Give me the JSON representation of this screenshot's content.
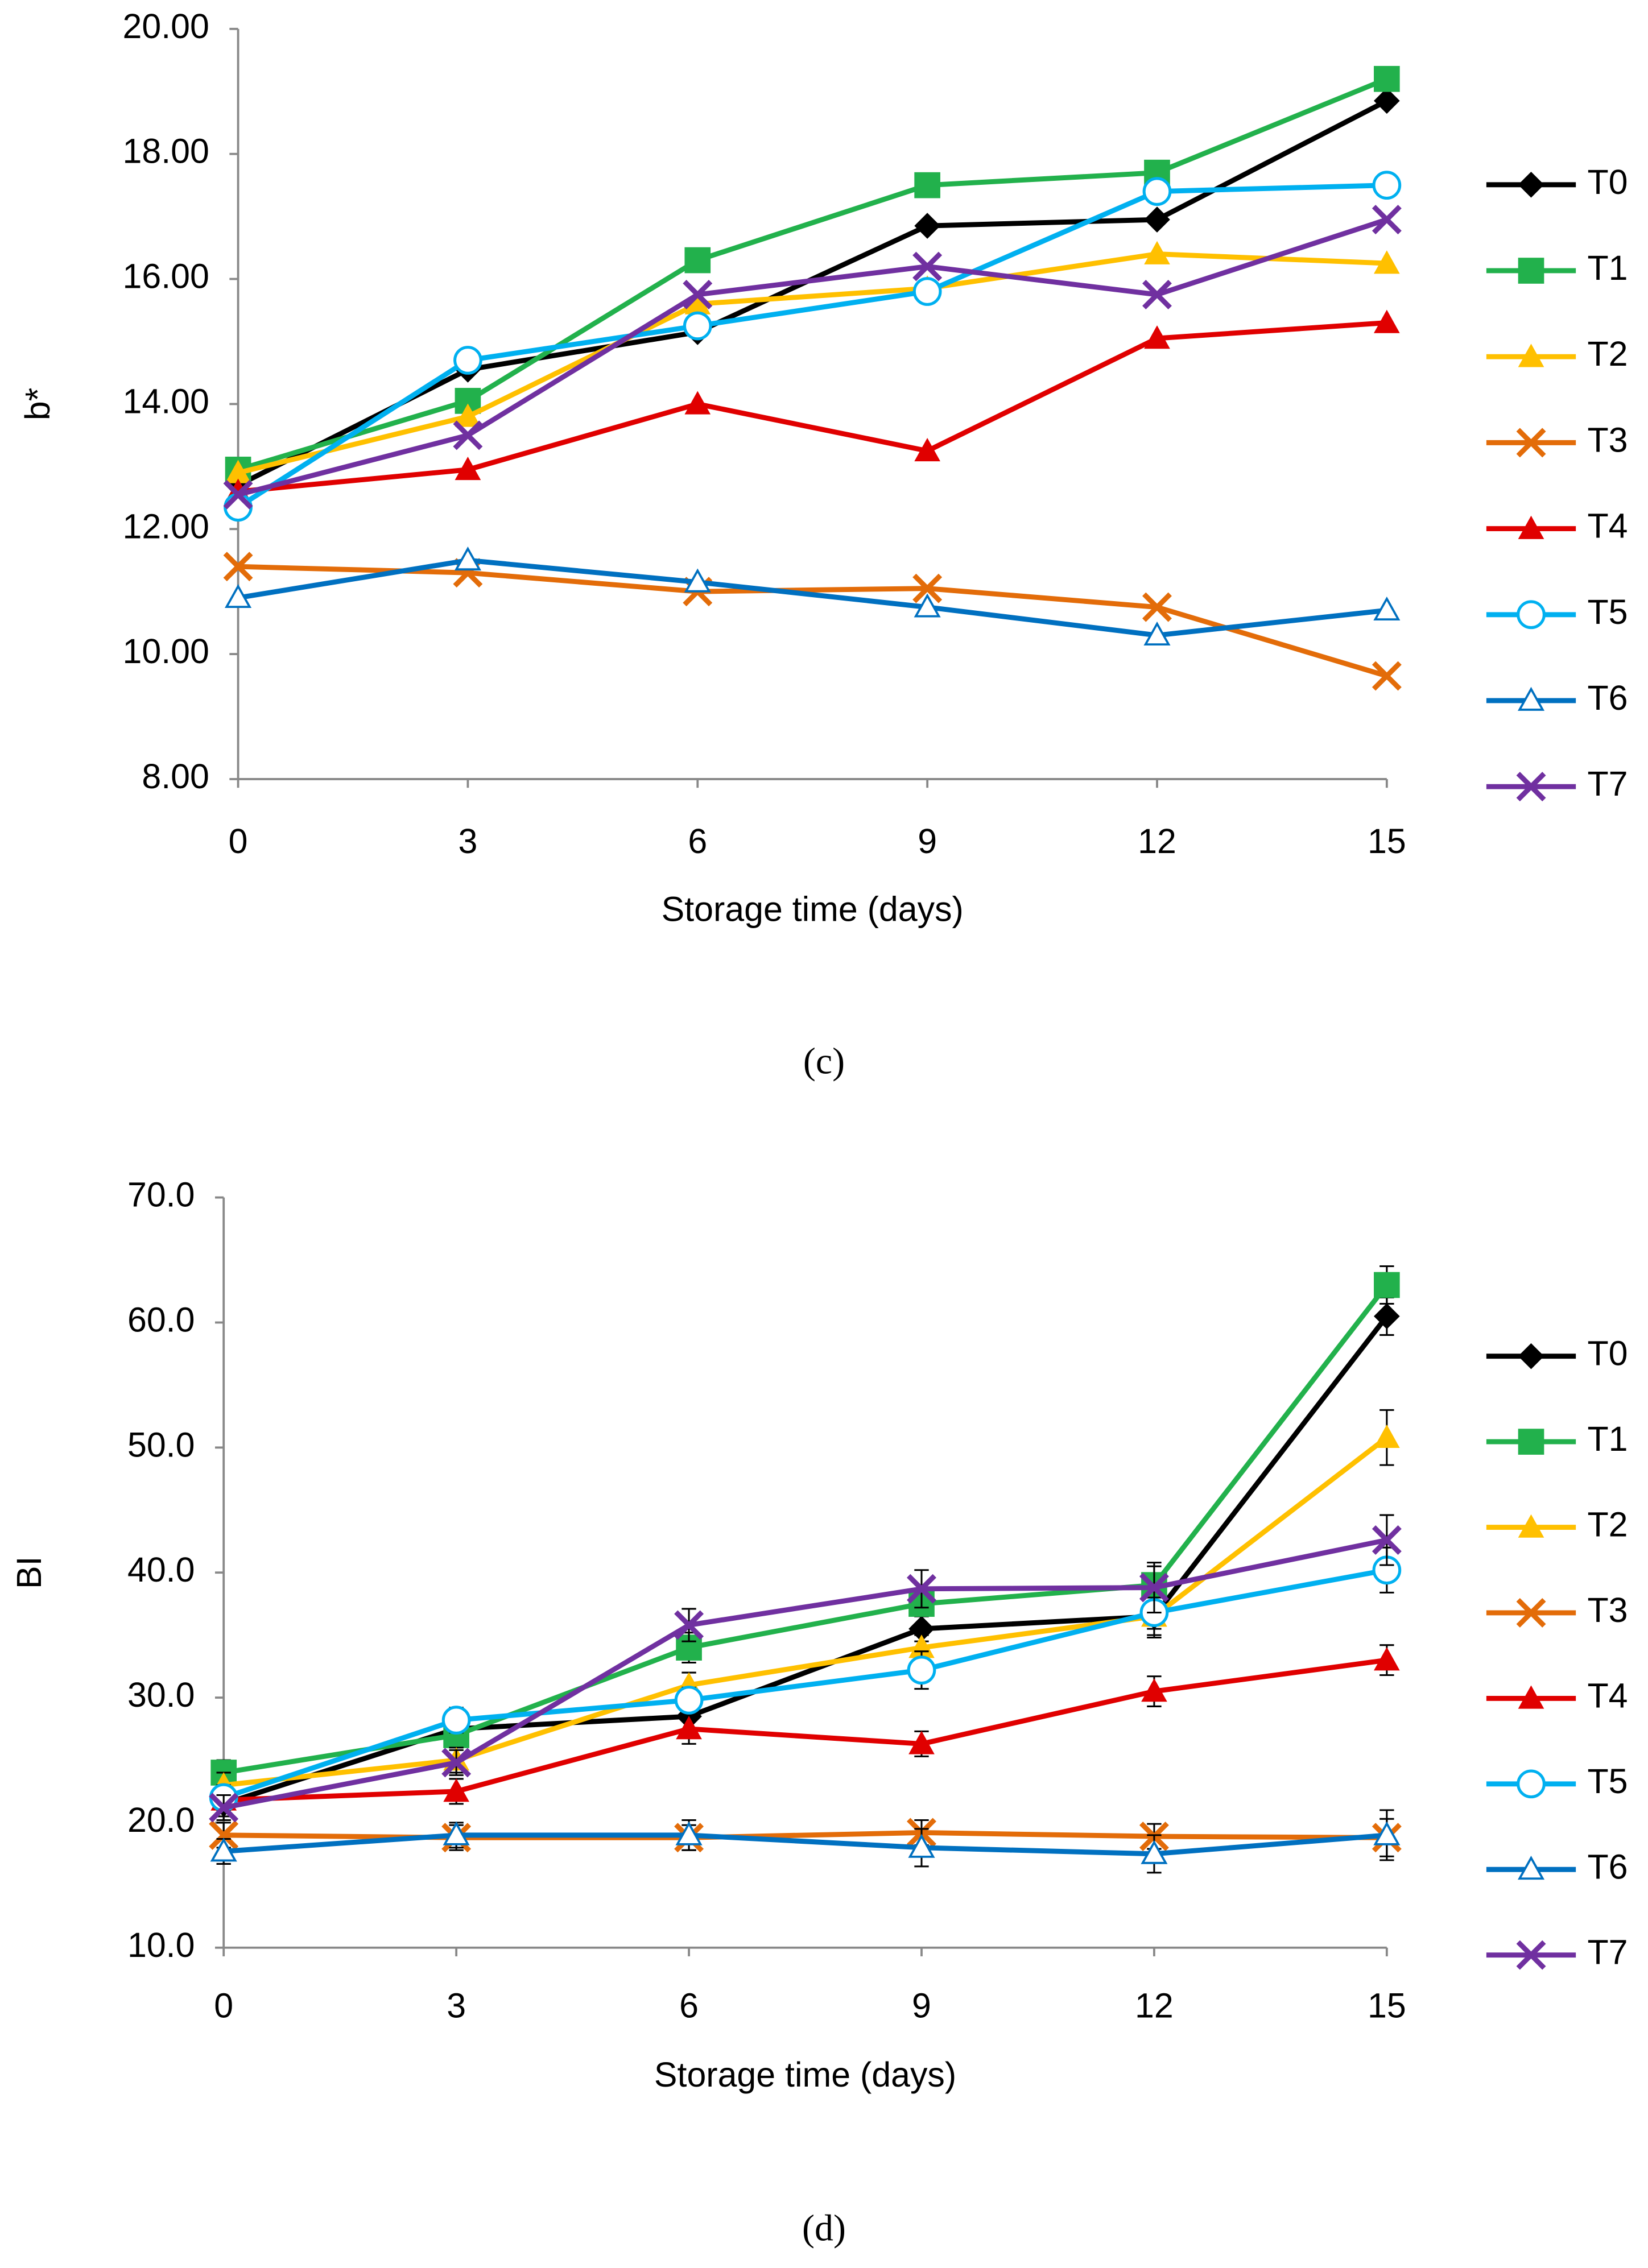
{
  "chart_data": [
    {
      "type": "line",
      "caption": "(c)",
      "xlabel": "Storage time (days)",
      "ylabel": "b*",
      "x": [
        0,
        3,
        6,
        9,
        12,
        15
      ],
      "xlim": [
        0,
        15
      ],
      "xticks": [
        0,
        3,
        6,
        9,
        12,
        15
      ],
      "ylim": [
        8,
        20
      ],
      "yticks": [
        {
          "value": 8,
          "label": "8.00"
        },
        {
          "value": 10,
          "label": "10.00"
        },
        {
          "value": 12,
          "label": "12.00"
        },
        {
          "value": 14,
          "label": "14.00"
        },
        {
          "value": 16,
          "label": "16.00"
        },
        {
          "value": 18,
          "label": "18.00"
        },
        {
          "value": 20,
          "label": "20.00"
        }
      ],
      "legend": "right",
      "series": [
        {
          "name": "T0",
          "color": "#000000",
          "marker": "diamond",
          "values": [
            12.7,
            14.55,
            15.15,
            16.85,
            16.95,
            18.85
          ]
        },
        {
          "name": "T1",
          "color": "#22b14c",
          "marker": "square",
          "values": [
            12.95,
            14.05,
            16.3,
            17.5,
            17.7,
            19.2
          ]
        },
        {
          "name": "T2",
          "color": "#ffc000",
          "marker": "triangle",
          "values": [
            12.9,
            13.8,
            15.6,
            15.85,
            16.4,
            16.25
          ]
        },
        {
          "name": "T3",
          "color": "#e36c09",
          "marker": "x",
          "values": [
            11.4,
            11.3,
            11.0,
            11.05,
            10.75,
            9.65
          ]
        },
        {
          "name": "T4",
          "color": "#e00000",
          "marker": "triangle",
          "values": [
            12.6,
            12.95,
            14.0,
            13.25,
            15.05,
            15.3
          ]
        },
        {
          "name": "T5",
          "color": "#00b0f0",
          "marker": "circle-open",
          "values": [
            12.35,
            14.7,
            15.25,
            15.8,
            17.4,
            17.5
          ]
        },
        {
          "name": "T6",
          "color": "#0070c0",
          "marker": "triangle-open",
          "values": [
            10.9,
            11.5,
            11.15,
            10.75,
            10.3,
            10.7
          ]
        },
        {
          "name": "T7",
          "color": "#7030a0",
          "marker": "x",
          "values": [
            12.55,
            13.5,
            15.75,
            16.2,
            15.75,
            16.95
          ]
        }
      ]
    },
    {
      "type": "line",
      "caption": "(d)",
      "xlabel": "Storage time (days)",
      "ylabel": "BI",
      "x": [
        0,
        3,
        6,
        9,
        12,
        15
      ],
      "xlim": [
        0,
        15
      ],
      "xticks": [
        0,
        3,
        6,
        9,
        12,
        15
      ],
      "ylim": [
        10,
        70
      ],
      "yticks": [
        {
          "value": 10,
          "label": "10.0"
        },
        {
          "value": 20,
          "label": "20.0"
        },
        {
          "value": 30,
          "label": "30.0"
        },
        {
          "value": 40,
          "label": "40.0"
        },
        {
          "value": 50,
          "label": "50.0"
        },
        {
          "value": 60,
          "label": "60.0"
        },
        {
          "value": 70,
          "label": "70.0"
        }
      ],
      "legend": "right",
      "series": [
        {
          "name": "T0",
          "color": "#000000",
          "marker": "diamond",
          "values": [
            21.5,
            27.5,
            28.5,
            35.5,
            36.5,
            60.5
          ],
          "errors": [
            1,
            1,
            1,
            1,
            1,
            1.5
          ]
        },
        {
          "name": "T1",
          "color": "#22b14c",
          "marker": "square",
          "values": [
            24,
            27,
            34,
            37.5,
            39,
            63
          ],
          "errors": [
            1,
            1,
            1.2,
            1,
            1.5,
            1.5
          ]
        },
        {
          "name": "T2",
          "color": "#ffc000",
          "marker": "triangle",
          "values": [
            23,
            25,
            31,
            34,
            36.5,
            50.8
          ],
          "errors": [
            1,
            1,
            1,
            1,
            1.5,
            2.2
          ]
        },
        {
          "name": "T3",
          "color": "#e36c09",
          "marker": "x",
          "values": [
            19,
            18.8,
            18.8,
            19.2,
            18.9,
            18.8
          ],
          "errors": [
            1,
            1,
            1,
            1,
            1,
            1.5
          ]
        },
        {
          "name": "T4",
          "color": "#e00000",
          "marker": "triangle",
          "values": [
            21.8,
            22.5,
            27.5,
            26.3,
            30.5,
            33
          ],
          "errors": [
            1,
            1,
            1.2,
            1,
            1.2,
            1.2
          ]
        },
        {
          "name": "T5",
          "color": "#00b0f0",
          "marker": "circle-open",
          "values": [
            22,
            28.2,
            29.8,
            32.2,
            36.8,
            40.2
          ],
          "errors": [
            1,
            1,
            1,
            1.5,
            2,
            1.8
          ]
        },
        {
          "name": "T6",
          "color": "#0070c0",
          "marker": "triangle-open",
          "values": [
            17.7,
            19,
            19,
            18,
            17.5,
            19
          ],
          "errors": [
            1,
            1,
            1.2,
            1.5,
            1.5,
            2
          ]
        },
        {
          "name": "T7",
          "color": "#7030a0",
          "marker": "x",
          "values": [
            21.2,
            24.8,
            35.8,
            38.7,
            38.8,
            42.6
          ],
          "errors": [
            1,
            1,
            1.3,
            1.5,
            2,
            2
          ]
        }
      ]
    }
  ]
}
